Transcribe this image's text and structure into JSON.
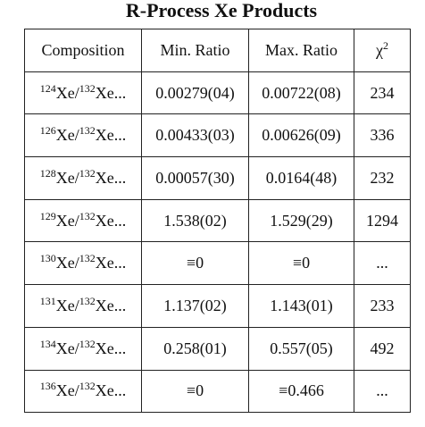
{
  "title": "R-Process Xe Products",
  "table": {
    "headers": {
      "composition": "Composition",
      "min_ratio": "Min. Ratio",
      "max_ratio": "Max. Ratio",
      "chi_symbol": "χ",
      "chi_power": "2"
    },
    "rows": [
      {
        "num_mass": "124",
        "num_elem": "Xe/",
        "den_mass": "132",
        "den_elem": "Xe...",
        "min": "0.00279(04)",
        "max": "0.00722(08)",
        "chi2": "234"
      },
      {
        "num_mass": "126",
        "num_elem": "Xe/",
        "den_mass": "132",
        "den_elem": "Xe...",
        "min": "0.00433(03)",
        "max": "0.00626(09)",
        "chi2": "336"
      },
      {
        "num_mass": "128",
        "num_elem": "Xe/",
        "den_mass": "132",
        "den_elem": "Xe...",
        "min": "0.00057(30)",
        "max": "0.0164(48)",
        "chi2": "232"
      },
      {
        "num_mass": "129",
        "num_elem": "Xe/",
        "den_mass": "132",
        "den_elem": "Xe...",
        "min": "1.538(02)",
        "max": "1.529(29)",
        "chi2": "1294"
      },
      {
        "num_mass": "130",
        "num_elem": "Xe/",
        "den_mass": "132",
        "den_elem": "Xe...",
        "min": "≡0",
        "max": "≡0",
        "chi2": "..."
      },
      {
        "num_mass": "131",
        "num_elem": "Xe/",
        "den_mass": "132",
        "den_elem": "Xe...",
        "min": "1.137(02)",
        "max": "1.143(01)",
        "chi2": "233"
      },
      {
        "num_mass": "134",
        "num_elem": "Xe/",
        "den_mass": "132",
        "den_elem": "Xe...",
        "min": "0.258(01)",
        "max": "0.557(05)",
        "chi2": "492"
      },
      {
        "num_mass": "136",
        "num_elem": "Xe/",
        "den_mass": "132",
        "den_elem": "Xe...",
        "min": "≡0",
        "max": "≡0.466",
        "chi2": "..."
      }
    ]
  }
}
